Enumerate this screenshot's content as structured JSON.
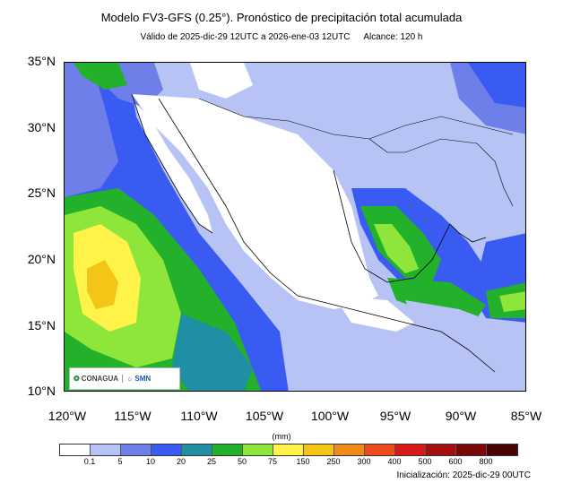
{
  "title": "Modelo FV3-GFS (0.25°). Pronóstico de precipitación total acumulada",
  "subtitle": {
    "valid": "Válido de 2025-dic-29 12UTC a 2026-ene-03 12UTC",
    "range": "Alcance: 120 h"
  },
  "lat_labels": [
    "35°N",
    "30°N",
    "25°N",
    "20°N",
    "15°N",
    "10°N"
  ],
  "lon_labels": [
    "120°W",
    "115°W",
    "110°W",
    "105°W",
    "100°W",
    "95°W",
    "90°W",
    "85°W"
  ],
  "legend": {
    "units": "(mm)",
    "ticks": [
      "0.1",
      "5",
      "10",
      "20",
      "25",
      "50",
      "75",
      "150",
      "250",
      "300",
      "400",
      "500",
      "600",
      "800"
    ],
    "colors": [
      "#ffffff",
      "#b7c3f5",
      "#6f7fea",
      "#3a5bf2",
      "#1f8fa3",
      "#23b12c",
      "#8ee63a",
      "#fff34a",
      "#f4c416",
      "#f08b1a",
      "#ee4b1f",
      "#d81919",
      "#a50f0f",
      "#7b0707",
      "#4a0303"
    ]
  },
  "logos": {
    "conagua": "CONAGUA",
    "smn": "SMN"
  },
  "init": "Inicialización: 2025-dic-29 00UTC",
  "colors": {
    "land_dry": "#ffffff",
    "light_rain": "#b7c3f5",
    "moderate": "#6f7fea",
    "blue": "#3a5bf2",
    "teal": "#1f8fa3",
    "green": "#23b12c",
    "lime": "#8ee63a",
    "yellow": "#fff34a",
    "orange": "#f4c416"
  }
}
